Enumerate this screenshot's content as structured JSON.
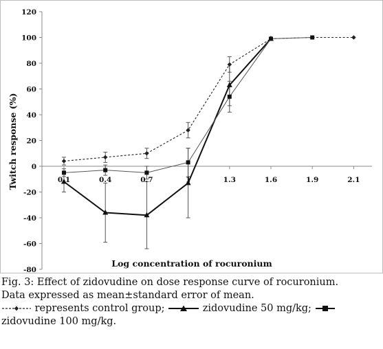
{
  "chart_data": {
    "type": "line",
    "ylabel": "Twitch response (%)",
    "xlabel": "Log concentration of rocuronium",
    "categories": [
      "0.1",
      "0.4",
      "0.7",
      "1",
      "1.3",
      "1.6",
      "1.9",
      "2.1"
    ],
    "ylim": [
      -80,
      120
    ],
    "yticks": [
      120,
      100,
      80,
      60,
      40,
      20,
      0,
      -20,
      -40,
      -60,
      -80
    ],
    "grid": false,
    "legend": "none",
    "series": [
      {
        "name": "control group",
        "values": [
          4,
          7,
          10,
          28,
          79,
          99,
          100,
          100
        ],
        "err": [
          3,
          4,
          4,
          6,
          6,
          0,
          0,
          0
        ],
        "color": "#222222",
        "line": "dashed",
        "marker": "diamond"
      },
      {
        "name": "zidovudine 50 mg/kg",
        "values": [
          -12,
          -36,
          -38,
          -13,
          63,
          99,
          null,
          null
        ],
        "err": [
          8,
          23,
          26,
          27,
          16,
          0,
          0,
          0
        ],
        "color": "#111111",
        "line": "solid-thick",
        "marker": "triangle"
      },
      {
        "name": "zidovudine 100 mg/kg",
        "values": [
          -5,
          -3,
          -5,
          3,
          54,
          99,
          100,
          null
        ],
        "err": [
          3,
          4,
          5,
          11,
          12,
          0,
          0,
          0
        ],
        "color": "#555555",
        "line": "solid-thin",
        "marker": "square"
      }
    ]
  },
  "caption": {
    "line1": "Fig. 3: Effect of zidovudine on dose response curve of rocuronium.",
    "line2": "Data expressed as mean±standard error of mean.",
    "line3a": " represents control group;",
    "line3b": " zidovudine 50 mg/kg;",
    "line4": "zidovudine 100 mg/kg."
  }
}
